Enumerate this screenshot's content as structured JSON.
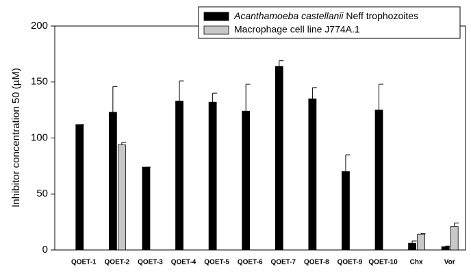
{
  "chart_data": {
    "type": "bar",
    "y_label": "Inhibitor concentration 50 (µM)",
    "categories": [
      "QOET-1",
      "QOET-2",
      "QOET-3",
      "QOET-4",
      "QOET-5",
      "QOET-6",
      "QOET-7",
      "QOET-8",
      "QOET-9",
      "QOET-10",
      "Chx",
      "Vor"
    ],
    "series": [
      {
        "name": "Acanthamoeba castellanii Neff trophozoites",
        "color": "#000000",
        "values": [
          112,
          123,
          74,
          133,
          132,
          124,
          164,
          135,
          70,
          125,
          6,
          3
        ],
        "errors": [
          0,
          23,
          0,
          18,
          8,
          24,
          5,
          10,
          15,
          23,
          2,
          0.5
        ]
      },
      {
        "name": "Macrophage cell line J774A.1",
        "color": "#c8c8c8",
        "values": [
          null,
          94,
          null,
          null,
          null,
          null,
          null,
          null,
          null,
          null,
          14,
          21
        ],
        "errors": [
          null,
          2,
          null,
          null,
          null,
          null,
          null,
          null,
          null,
          null,
          1,
          3
        ]
      }
    ],
    "ylim": [
      0,
      200
    ],
    "yticks": [
      0,
      50,
      100,
      150,
      200
    ],
    "grid": false,
    "legend": "top-right"
  }
}
